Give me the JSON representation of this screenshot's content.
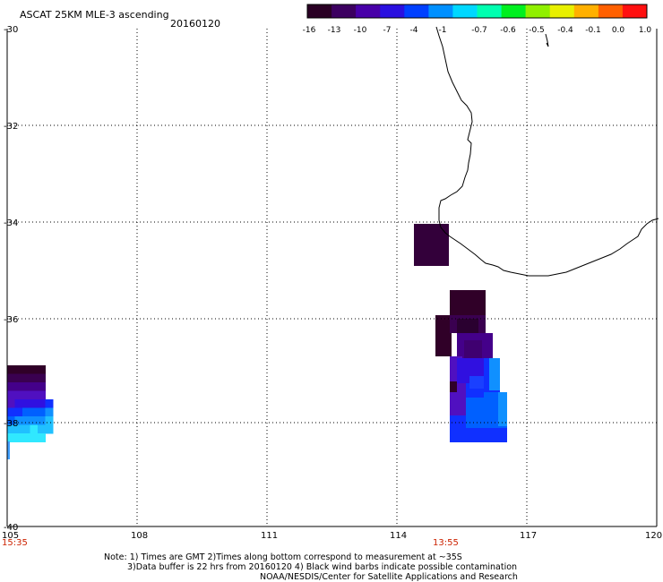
{
  "title": "ASCAT 25KM MLE-3 ascending",
  "date": "20160120",
  "colorbar": {
    "colors": [
      "#2a0024",
      "#3c0060",
      "#4800a8",
      "#2a10e0",
      "#0040ff",
      "#0090ff",
      "#00d8ff",
      "#00ffb0",
      "#00f020",
      "#90f000",
      "#e8f000",
      "#ffb000",
      "#ff6000",
      "#ff1010"
    ],
    "tick_labels": [
      "-16",
      "-13",
      "-10",
      "-7",
      "-4",
      "-1",
      "-0.7",
      "-0.6",
      "-0.5",
      "-0.4",
      "-0.1",
      "0.0",
      "1.0"
    ]
  },
  "axes": {
    "lon_labels": [
      "105",
      "108",
      "111",
      "114",
      "117",
      "120"
    ],
    "lat_labels": [
      "-30",
      "-32",
      "-34",
      "-36",
      "-38",
      "-40"
    ]
  },
  "time_labels": [
    "15:35",
    "13:55"
  ],
  "notes": [
    "Note: 1) Times are GMT 2)Times along bottom correspond to measurement at ~35S",
    "3)Data buffer is 22 hrs from 20160120 4) Black wind barbs indicate possible contamination",
    "NOAA/NESDIS/Center for Satellite Applications and Research"
  ]
}
